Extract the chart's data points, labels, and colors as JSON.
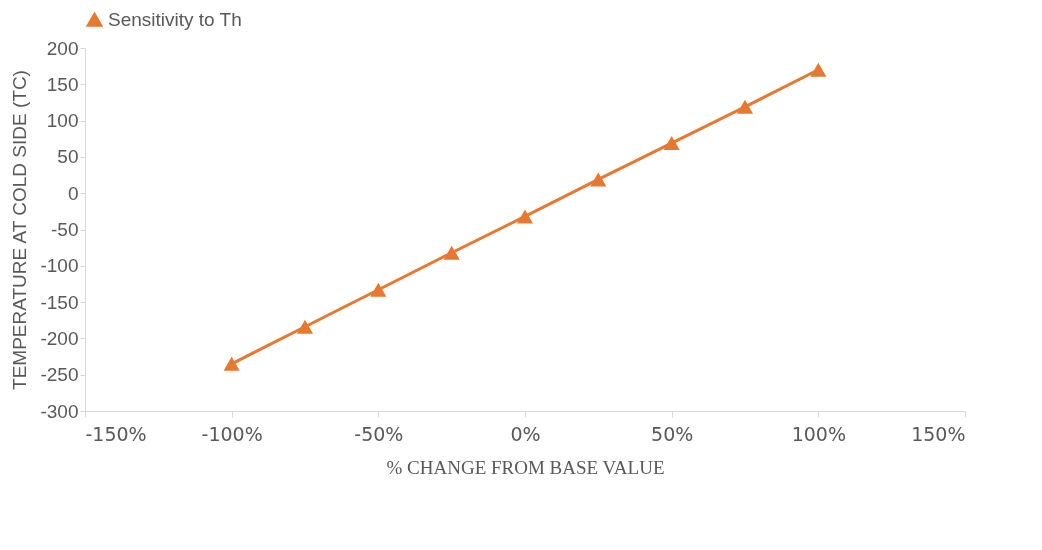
{
  "chart_data": {
    "type": "line",
    "xlabel": "% CHANGE FROM BASE VALUE",
    "ylabel": "TEMPERATURE AT COLD SIDE (TC)",
    "x": [
      -100,
      -75,
      -50,
      -25,
      0,
      25,
      50,
      75,
      100
    ],
    "series": [
      {
        "name": "Sensitivity to Th",
        "color": "#e8782f",
        "values": [
          -235,
          -184,
          -133,
          -82,
          -32,
          19,
          69,
          119,
          170
        ]
      }
    ],
    "xlim": [
      -150,
      150
    ],
    "xticks": [
      {
        "value": -150,
        "label": "-150%"
      },
      {
        "value": -100,
        "label": "-100%"
      },
      {
        "value": -50,
        "label": "-50%"
      },
      {
        "value": 0,
        "label": "0%"
      },
      {
        "value": 50,
        "label": "50%"
      },
      {
        "value": 100,
        "label": "100%"
      },
      {
        "value": 150,
        "label": "150%"
      }
    ],
    "ylim": [
      -300,
      200
    ],
    "yticks": [
      -300,
      -250,
      -200,
      -150,
      -100,
      -50,
      0,
      50,
      100,
      150,
      200
    ],
    "grid": false,
    "legend": "top",
    "marker": "triangle",
    "line_style": "solid"
  }
}
